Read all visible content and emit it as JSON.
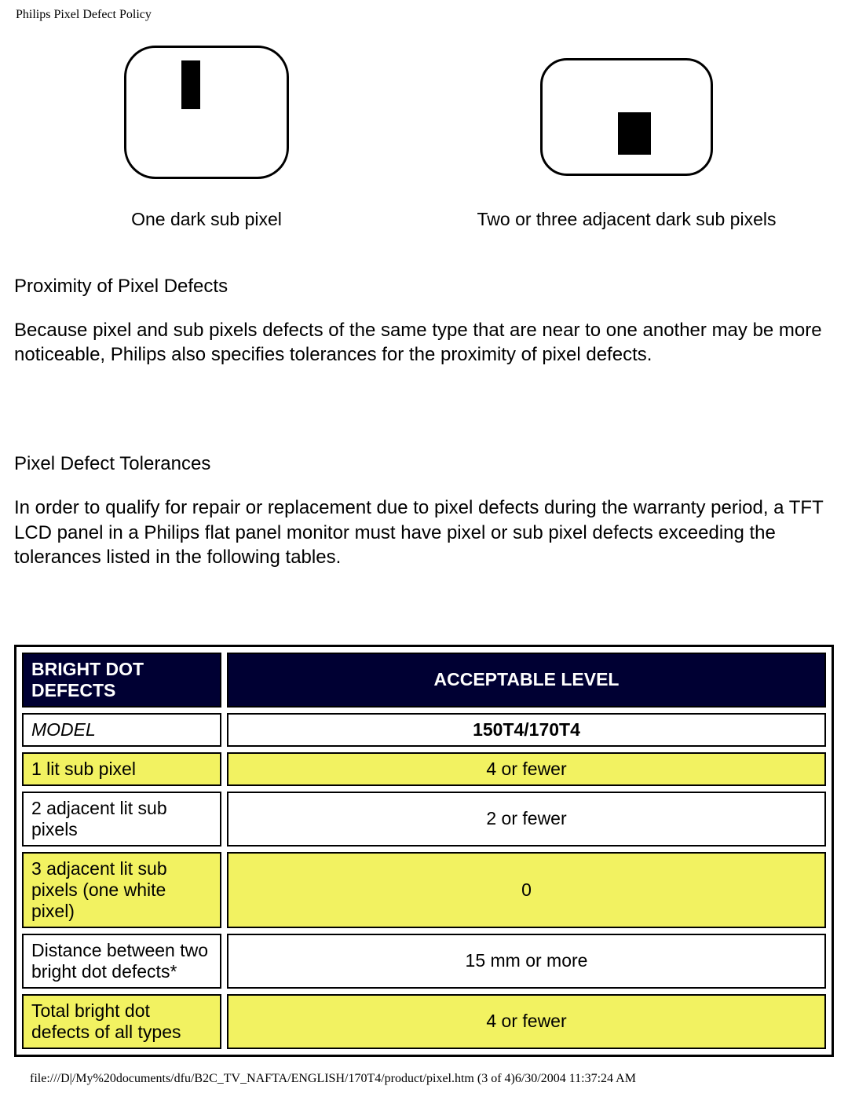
{
  "header": "Philips Pixel Defect Policy",
  "diagram": {
    "caption_left": "One dark sub pixel",
    "caption_right": "Two or three adjacent dark sub pixels",
    "border_color": "#000000",
    "fill_color": "#000000",
    "background": "#ffffff"
  },
  "section1": {
    "heading": "Proximity of Pixel Defects",
    "body": "Because pixel and sub pixels defects of the same type that are near to one another may be more noticeable, Philips also specifies tolerances for the proximity of pixel defects."
  },
  "section2": {
    "heading": "Pixel Defect Tolerances",
    "body": "In order to qualify for repair or replacement due to pixel defects during the warranty period, a TFT LCD panel in a Philips flat panel monitor must have pixel or sub pixel defects exceeding the tolerances listed in the following tables."
  },
  "table": {
    "header_bg": "#000033",
    "header_fg": "#ffffff",
    "row_highlight_bg": "#f2f261",
    "border_color": "#000000",
    "col1_header": "BRIGHT DOT DEFECTS",
    "col2_header": "ACCEPTABLE LEVEL",
    "model_label": "MODEL",
    "model_value": "150T4/170T4",
    "rows": [
      {
        "label": "1 lit sub pixel",
        "value": "4 or fewer",
        "highlight": true
      },
      {
        "label": "2 adjacent lit sub pixels",
        "value": "2 or fewer",
        "highlight": false
      },
      {
        "label": "3 adjacent lit sub pixels (one white pixel)",
        "value": "0",
        "highlight": true
      },
      {
        "label": "Distance between two bright dot defects*",
        "value": "15 mm or more",
        "highlight": false
      },
      {
        "label": "Total bright dot defects of all types",
        "value": "4 or fewer",
        "highlight": true
      }
    ]
  },
  "footer": "file:///D|/My%20documents/dfu/B2C_TV_NAFTA/ENGLISH/170T4/product/pixel.htm (3 of 4)6/30/2004 11:37:24 AM"
}
